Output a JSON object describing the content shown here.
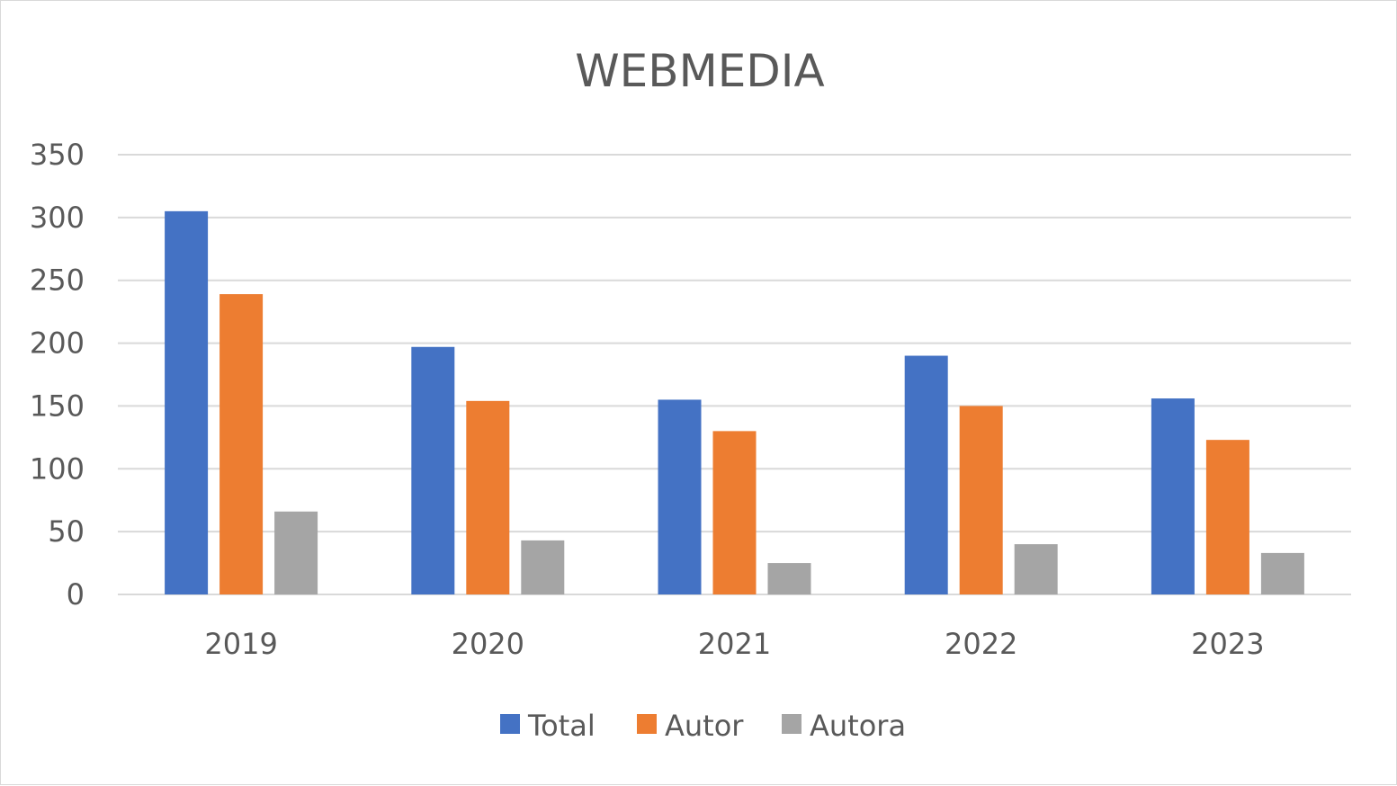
{
  "chart_data": {
    "type": "bar",
    "title": "WEBMEDIA",
    "xlabel": "",
    "ylabel": "",
    "categories": [
      "2019",
      "2020",
      "2021",
      "2022",
      "2023"
    ],
    "series": [
      {
        "name": "Total",
        "color": "#4472C4",
        "values": [
          305,
          197,
          155,
          190,
          156
        ]
      },
      {
        "name": "Autor",
        "color": "#ED7D31",
        "values": [
          239,
          154,
          130,
          150,
          123
        ]
      },
      {
        "name": "Autora",
        "color": "#A5A5A5",
        "values": [
          66,
          43,
          25,
          40,
          33
        ]
      }
    ],
    "ylim": [
      0,
      350
    ],
    "yticks": [
      "0",
      "50",
      "100",
      "150",
      "200",
      "250",
      "300",
      "350"
    ],
    "grid": true,
    "legend_position": "bottom"
  }
}
